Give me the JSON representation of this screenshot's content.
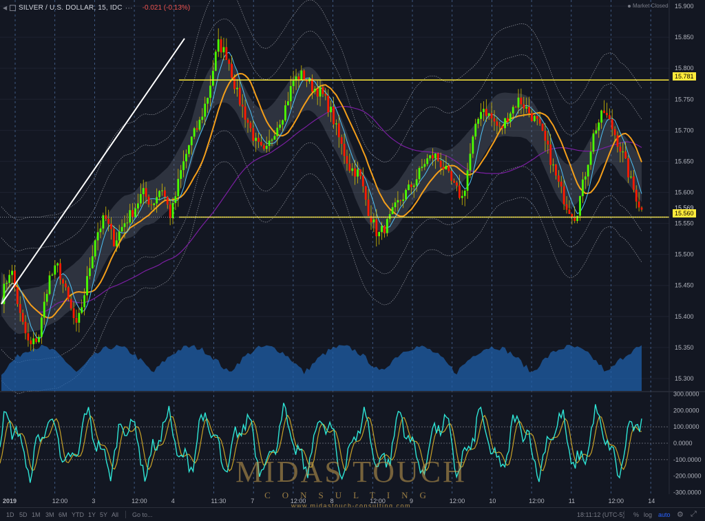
{
  "header": {
    "symbol": "SILVER / U.S. DOLLAR, 15, IDC",
    "change": "-0.021 (-0.13%)",
    "status": "Market Closed"
  },
  "levels": {
    "resistance": "15.781",
    "last": "15.569",
    "support": "15.560"
  },
  "watermark": {
    "brand": "MIDAS TOUCH",
    "tagline": "CONSULTING",
    "url": "www.midastouch-consulting.com"
  },
  "toolbar": {
    "timeframes": [
      "1D",
      "5D",
      "1M",
      "3M",
      "6M",
      "YTD",
      "1Y",
      "5Y",
      "All"
    ],
    "goto": "Go to...",
    "clock": "18:11:12 (UTC-5)",
    "percent": "%",
    "log": "log",
    "auto": "auto",
    "settings_icon": "gear-icon",
    "fullscreen_icon": "expand-icon"
  },
  "colors": {
    "background": "#131722",
    "bull": "#4cff00",
    "bear": "#ff1a00",
    "wick": "#d8c200",
    "level": "#ffeb3b",
    "trendline": "#ffffff",
    "volume": "#1f5fa8",
    "oscillator": "#2ee6d6",
    "signal": "#c9a227"
  },
  "chart_data": [
    {
      "type": "line",
      "title": "SILVER / U.S. DOLLAR, 15, IDC",
      "x_labels": [
        "2019",
        "12:00",
        "3",
        "12:00",
        "4",
        "11:30",
        "7",
        "12:00",
        "8",
        "12:00",
        "9",
        "12:00",
        "10",
        "12:00",
        "11",
        "12:00",
        "14"
      ],
      "y_ticks": [
        15.9,
        15.85,
        15.8,
        15.75,
        15.7,
        15.65,
        15.6,
        15.55,
        15.5,
        15.45,
        15.4,
        15.35,
        15.3
      ],
      "ylim": [
        15.28,
        15.91
      ],
      "series": [
        {
          "type": "candlestick-close",
          "values": [
            15.43,
            15.48,
            15.4,
            15.35,
            15.37,
            15.46,
            15.48,
            15.43,
            15.38,
            15.45,
            15.53,
            15.56,
            15.52,
            15.55,
            15.57,
            15.6,
            15.58,
            15.61,
            15.56,
            15.63,
            15.68,
            15.71,
            15.76,
            15.84,
            15.82,
            15.76,
            15.72,
            15.68,
            15.66,
            15.7,
            15.73,
            15.78,
            15.79,
            15.77,
            15.76,
            15.73,
            15.68,
            15.64,
            15.63,
            15.57,
            15.53,
            15.55,
            15.58,
            15.6,
            15.62,
            15.65,
            15.66,
            15.64,
            15.61,
            15.59,
            15.68,
            15.74,
            15.72,
            15.7,
            15.73,
            15.75,
            15.73,
            15.71,
            15.67,
            15.62,
            15.58,
            15.56,
            15.63,
            15.7,
            15.73,
            15.7,
            15.66,
            15.61,
            15.57
          ]
        }
      ],
      "levels": [
        {
          "name": "resistance",
          "value": 15.781
        },
        {
          "name": "support",
          "value": 15.56
        }
      ],
      "last": 15.569,
      "grid": true,
      "legend": "none"
    },
    {
      "type": "line",
      "y_ticks": [
        300,
        200,
        100,
        0,
        -100,
        -200,
        -300
      ],
      "y_tick_labels": [
        "300.0000",
        "200.0000",
        "100.0000",
        "0.0000",
        "-100.0000",
        "-200.0000",
        "-300.0000"
      ],
      "ylim": [
        -310,
        310
      ]
    }
  ]
}
